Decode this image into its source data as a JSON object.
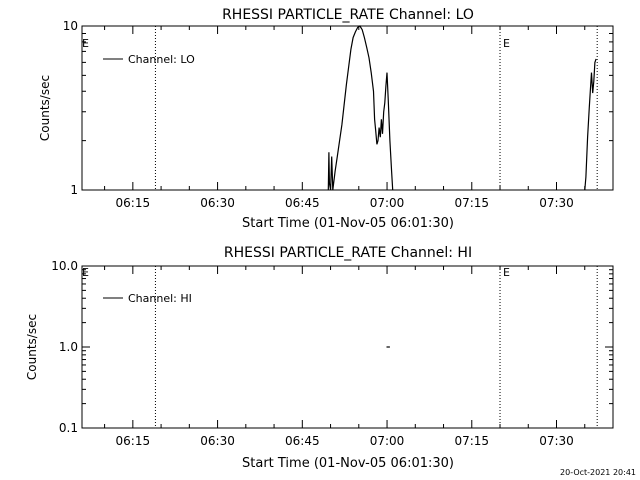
{
  "chart_data": [
    {
      "type": "line",
      "title": "RHESSI PARTICLE_RATE Channel: LO",
      "xlabel": "Start Time (01-Nov-05 06:01:30)",
      "ylabel": "Counts/sec",
      "y_scale": "log",
      "ylim": [
        1,
        10
      ],
      "y_ticks": [
        {
          "value": 1,
          "label": "1"
        },
        {
          "value": 10,
          "label": "10"
        }
      ],
      "xlim_minutes": [
        6.0,
        100.0
      ],
      "x_ticks": [
        {
          "value": 15,
          "label": "06:15"
        },
        {
          "value": 30,
          "label": "06:30"
        },
        {
          "value": 45,
          "label": "06:45"
        },
        {
          "value": 60,
          "label": "07:00"
        },
        {
          "value": 75,
          "label": "07:15"
        },
        {
          "value": 90,
          "label": "07:30"
        }
      ],
      "legend": {
        "label": "Channel: LO",
        "position": "top-left"
      },
      "event_lines": [
        {
          "x": 19.0,
          "label": ""
        },
        {
          "x": 80.0,
          "label": "E"
        },
        {
          "x": 97.2,
          "label": ""
        }
      ],
      "event_labels_left": "E",
      "series": [
        {
          "name": "Channel: LO",
          "segments": [
            [
              [
                49.6,
                0.9
              ],
              [
                49.7,
                1.7
              ],
              [
                49.8,
                1.1
              ],
              [
                50.0,
                0.9
              ],
              [
                50.2,
                1.6
              ],
              [
                50.4,
                0.9
              ],
              [
                50.8,
                1.3
              ],
              [
                51.2,
                1.6
              ],
              [
                51.6,
                2.0
              ],
              [
                52.0,
                2.5
              ],
              [
                52.4,
                3.3
              ],
              [
                52.8,
                4.4
              ],
              [
                53.2,
                5.6
              ],
              [
                53.6,
                7.2
              ],
              [
                54.0,
                8.5
              ],
              [
                54.4,
                9.2
              ],
              [
                54.8,
                9.8
              ],
              [
                55.2,
                10.2
              ],
              [
                55.6,
                9.5
              ],
              [
                56.0,
                8.5
              ],
              [
                56.4,
                7.4
              ],
              [
                56.8,
                6.4
              ],
              [
                57.2,
                5.2
              ],
              [
                57.6,
                4.0
              ],
              [
                57.8,
                2.7
              ],
              [
                58.0,
                2.3
              ],
              [
                58.2,
                1.9
              ],
              [
                58.4,
                2.0
              ],
              [
                58.6,
                2.4
              ],
              [
                58.8,
                2.1
              ],
              [
                59.0,
                2.7
              ],
              [
                59.2,
                2.2
              ],
              [
                59.4,
                3.0
              ],
              [
                59.6,
                3.4
              ],
              [
                59.8,
                4.3
              ],
              [
                60.0,
                5.2
              ],
              [
                60.2,
                3.6
              ],
              [
                60.5,
                2.0
              ],
              [
                60.8,
                1.3
              ],
              [
                61.0,
                0.9
              ]
            ],
            [
              [
                95.0,
                0.9
              ],
              [
                95.2,
                1.2
              ],
              [
                95.5,
                2.1
              ],
              [
                95.8,
                3.2
              ],
              [
                96.0,
                4.1
              ],
              [
                96.2,
                5.2
              ],
              [
                96.4,
                3.9
              ],
              [
                96.6,
                4.6
              ],
              [
                96.8,
                6.0
              ],
              [
                97.0,
                6.3
              ]
            ]
          ]
        }
      ]
    },
    {
      "type": "line",
      "title": "RHESSI PARTICLE_RATE Channel: HI",
      "xlabel": "Start Time (01-Nov-05 06:01:30)",
      "ylabel": "Counts/sec",
      "y_scale": "log",
      "ylim": [
        0.1,
        10
      ],
      "y_ticks": [
        {
          "value": 0.1,
          "label": "0.1"
        },
        {
          "value": 1,
          "label": "1.0"
        },
        {
          "value": 10,
          "label": "10.0"
        }
      ],
      "xlim_minutes": [
        6.0,
        100.0
      ],
      "x_ticks": [
        {
          "value": 15,
          "label": "06:15"
        },
        {
          "value": 30,
          "label": "06:30"
        },
        {
          "value": 45,
          "label": "06:45"
        },
        {
          "value": 60,
          "label": "07:00"
        },
        {
          "value": 75,
          "label": "07:15"
        },
        {
          "value": 90,
          "label": "07:30"
        }
      ],
      "legend": {
        "label": "Channel: HI",
        "position": "top-left"
      },
      "event_lines": [
        {
          "x": 19.0,
          "label": ""
        },
        {
          "x": 80.0,
          "label": "E"
        },
        {
          "x": 97.2,
          "label": ""
        }
      ],
      "event_labels_left": "E",
      "series": [
        {
          "name": "Channel: HI",
          "segments": [
            [
              [
                59.9,
                1.0
              ],
              [
                60.5,
                1.0
              ]
            ]
          ]
        }
      ]
    }
  ],
  "footer": {
    "timestamp": "20-Oct-2021 20:41"
  }
}
